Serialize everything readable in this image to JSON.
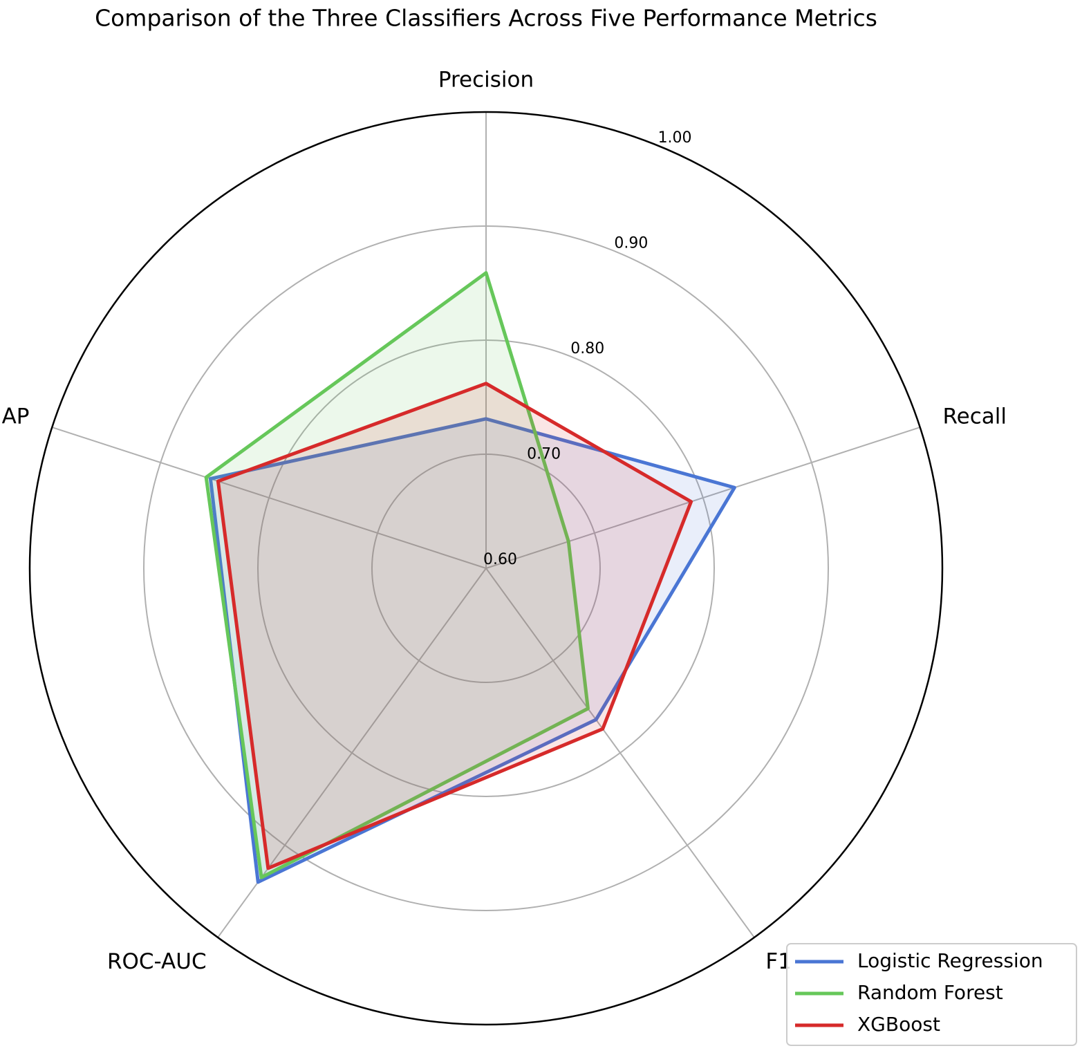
{
  "chart_data": {
    "type": "radar",
    "title": "Comparison of the Three Classifiers Across Five Performance Metrics",
    "categories": [
      "Precision",
      "Recall",
      "F1",
      "ROC-AUC",
      "AP"
    ],
    "series": [
      {
        "name": "Logistic Regression",
        "color": "#4a76d4",
        "values": [
          0.731,
          0.829,
          0.764,
          0.94,
          0.854
        ]
      },
      {
        "name": "Random Forest",
        "color": "#66c75a",
        "values": [
          0.859,
          0.676,
          0.752,
          0.935,
          0.858
        ]
      },
      {
        "name": "XGBoost",
        "color": "#d62a2a",
        "values": [
          0.762,
          0.789,
          0.774,
          0.925,
          0.847
        ]
      }
    ],
    "ylim": [
      0.6,
      1.0
    ],
    "yticks": [
      {
        "value": 0.6,
        "label": "0.60"
      },
      {
        "value": 0.7,
        "label": "0.70"
      },
      {
        "value": 0.8,
        "label": "0.80"
      },
      {
        "value": 0.9,
        "label": "0.90"
      },
      {
        "value": 1.0,
        "label": "1.00"
      }
    ],
    "grid": true,
    "legend": "lower right"
  }
}
